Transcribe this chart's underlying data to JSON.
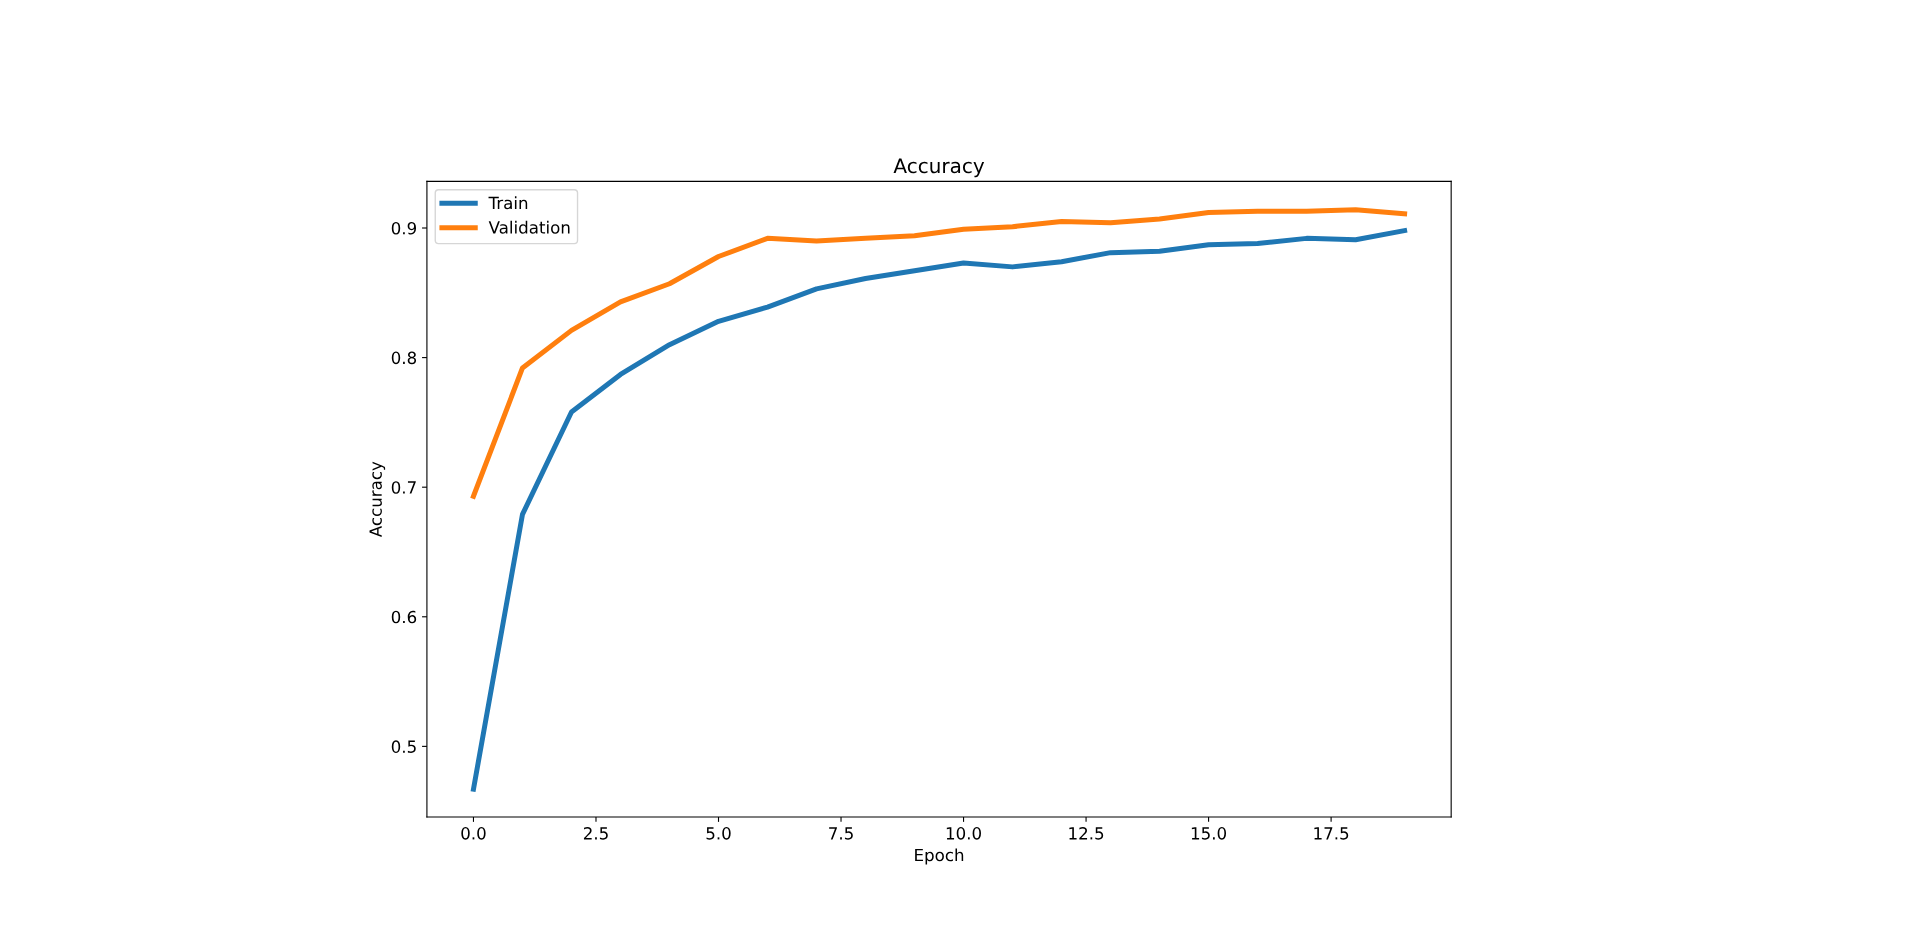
{
  "chart_data": {
    "type": "line",
    "title": "Accuracy",
    "xlabel": "Epoch",
    "ylabel": "Accuracy",
    "x": [
      0,
      1,
      2,
      3,
      4,
      5,
      6,
      7,
      8,
      9,
      10,
      11,
      12,
      13,
      14,
      15,
      16,
      17,
      18,
      19
    ],
    "series": [
      {
        "name": "Train",
        "color": "#1f77b4",
        "values": [
          0.467,
          0.679,
          0.758,
          0.787,
          0.81,
          0.828,
          0.839,
          0.853,
          0.861,
          0.867,
          0.873,
          0.87,
          0.874,
          0.881,
          0.882,
          0.887,
          0.888,
          0.892,
          0.891,
          0.898
        ]
      },
      {
        "name": "Validation",
        "color": "#ff7f0e",
        "values": [
          0.693,
          0.792,
          0.821,
          0.843,
          0.857,
          0.878,
          0.892,
          0.89,
          0.892,
          0.894,
          0.899,
          0.901,
          0.905,
          0.904,
          0.907,
          0.912,
          0.913,
          0.913,
          0.914,
          0.911
        ]
      }
    ],
    "xlim": [
      -0.95,
      19.95
    ],
    "ylim": [
      0.4455,
      0.936
    ],
    "xticks": [
      {
        "value": 0,
        "label": "0.0"
      },
      {
        "value": 2.5,
        "label": "2.5"
      },
      {
        "value": 5,
        "label": "5.0"
      },
      {
        "value": 7.5,
        "label": "7.5"
      },
      {
        "value": 10,
        "label": "10.0"
      },
      {
        "value": 12.5,
        "label": "12.5"
      },
      {
        "value": 15,
        "label": "15.0"
      },
      {
        "value": 17.5,
        "label": "17.5"
      }
    ],
    "yticks": [
      0.5,
      0.6,
      0.7,
      0.8,
      0.9
    ],
    "legend": "upper left",
    "grid": false,
    "marker": "none",
    "line_style": "solid"
  }
}
